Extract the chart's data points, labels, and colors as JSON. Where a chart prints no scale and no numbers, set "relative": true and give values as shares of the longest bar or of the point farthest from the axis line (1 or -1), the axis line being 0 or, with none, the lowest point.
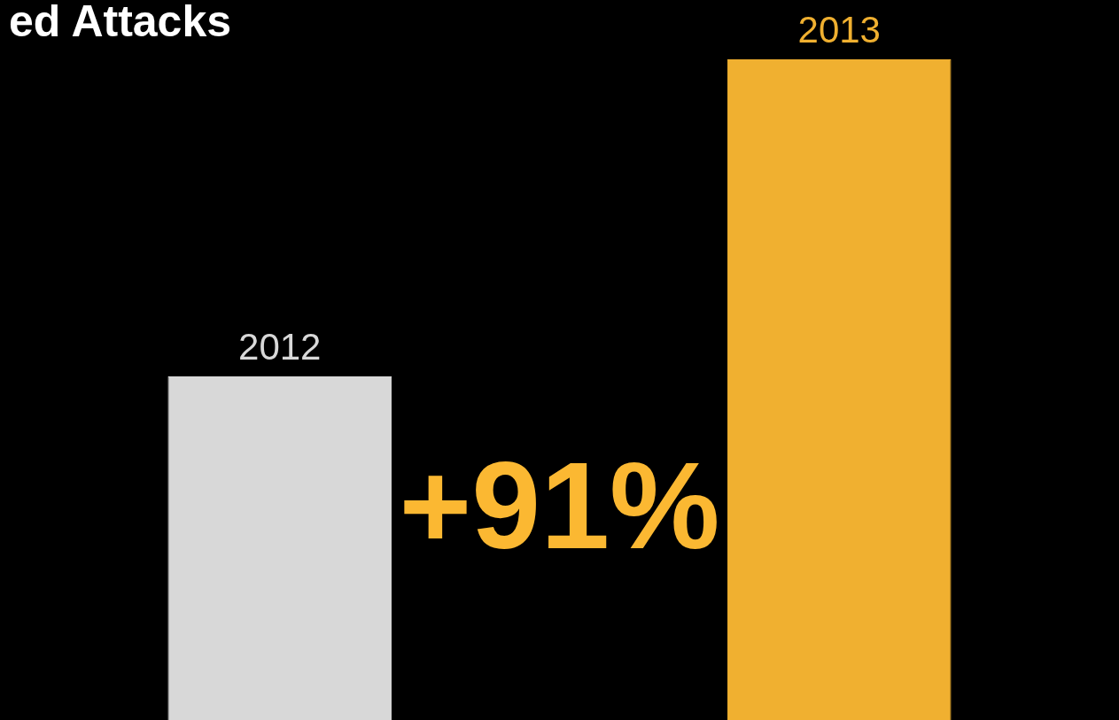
{
  "chart_data": {
    "type": "bar",
    "title": "ed Attacks",
    "relative": true,
    "categories": [
      "2012",
      "2013"
    ],
    "values": [
      0.52,
      1
    ],
    "colors": [
      "#d8d8d8",
      "#f0b030"
    ],
    "annotations": [
      "+91%"
    ],
    "legend": false
  }
}
